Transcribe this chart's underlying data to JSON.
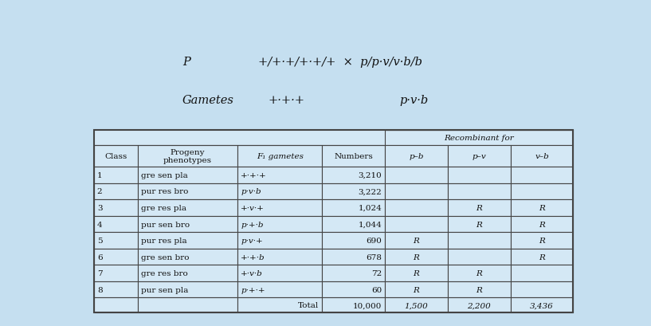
{
  "background_color": "#c5dff0",
  "table_bg": "#d4e8f5",
  "border_color": "#444444",
  "text_color": "#111111",
  "title_p": "P",
  "title_cross": "+/+·+/+·+/+  ×  p/p·v/v·b/b",
  "title_gametes": "Gametes",
  "title_gam_left": "+·+·+",
  "title_gam_right": "p·v·b",
  "recombinant_header": "Recombinant for",
  "col_headers": [
    "Class",
    "Progeny\nphenotypes",
    "F₁ gametes",
    "Numbers",
    "p–b",
    "p–v",
    "v–b"
  ],
  "rows": [
    [
      "1",
      "gre sen pla",
      "+·+·+",
      "3,210",
      "",
      "",
      ""
    ],
    [
      "2",
      "pur res bro",
      "p·v·b",
      "3,222",
      "",
      "",
      ""
    ],
    [
      "3",
      "gre res pla",
      "+·v·+",
      "1,024",
      "",
      "R",
      "R"
    ],
    [
      "4",
      "pur sen bro",
      "p·+·b",
      "1,044",
      "",
      "R",
      "R"
    ],
    [
      "5",
      "pur res pla",
      "p·v·+",
      "690",
      "R",
      "",
      "R"
    ],
    [
      "6",
      "gre sen bro",
      "+·+·b",
      "678",
      "R",
      "",
      "R"
    ],
    [
      "7",
      "gre res bro",
      "+·v·b",
      "72",
      "R",
      "R",
      ""
    ],
    [
      "8",
      "pur sen pla",
      "p·+·+",
      "60",
      "R",
      "R",
      ""
    ]
  ],
  "total_row": [
    "",
    "",
    "Total",
    "10,000",
    "1,500",
    "2,200",
    "3,436"
  ],
  "col_aligns": [
    "left",
    "left",
    "left",
    "right",
    "center",
    "center",
    "center"
  ],
  "italic_cols": [
    2,
    4,
    5,
    6
  ],
  "font_size": 7.5,
  "header_font_size": 7.5,
  "title_font_size": 10.5,
  "col_props": [
    0.082,
    0.188,
    0.158,
    0.118,
    0.118,
    0.118,
    0.118
  ]
}
